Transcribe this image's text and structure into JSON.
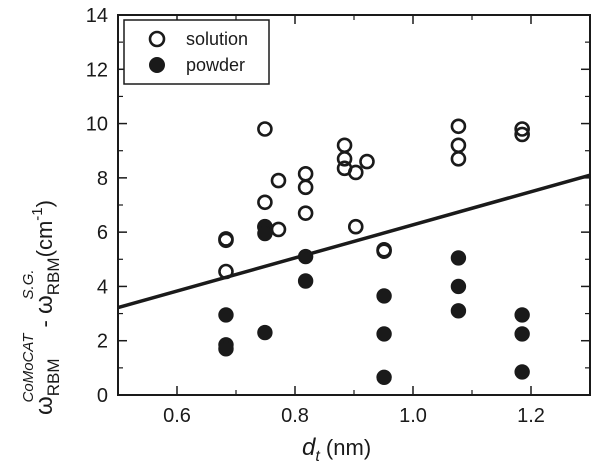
{
  "chart_data": {
    "type": "scatter",
    "xlim": [
      0.5,
      1.3
    ],
    "ylim": [
      0,
      14
    ],
    "x_ticks": [
      "0.6",
      "0.8",
      "1.0",
      "1.2"
    ],
    "y_ticks": [
      "0",
      "2",
      "4",
      "6",
      "8",
      "10",
      "12",
      "14"
    ],
    "xlabel": {
      "main": "d",
      "sub": "t",
      "unit": " (nm)"
    },
    "ylabel": {
      "omega1": "ω",
      "sub1": "RBM",
      "sup1": "CoMoCAT",
      "minus": " - ",
      "omega2": "ω",
      "sub2": "RBM",
      "sup2": "S.G.",
      "unit": " (cm",
      "unit_sup": "-1",
      "unit_close": ")"
    },
    "legend": {
      "placement": "top-left",
      "entries": [
        {
          "label": "solution",
          "marker": "open-circle"
        },
        {
          "label": "powder",
          "marker": "filled-circle"
        }
      ]
    },
    "series": [
      {
        "name": "solution",
        "marker": "open-circle",
        "points": [
          [
            0.683,
            4.55
          ],
          [
            0.683,
            5.7
          ],
          [
            0.683,
            5.75
          ],
          [
            0.749,
            9.8
          ],
          [
            0.749,
            7.1
          ],
          [
            0.749,
            6.2
          ],
          [
            0.772,
            7.9
          ],
          [
            0.772,
            6.1
          ],
          [
            0.818,
            8.15
          ],
          [
            0.818,
            7.65
          ],
          [
            0.818,
            6.7
          ],
          [
            0.884,
            9.2
          ],
          [
            0.884,
            8.7
          ],
          [
            0.884,
            8.35
          ],
          [
            0.903,
            8.2
          ],
          [
            0.903,
            6.2
          ],
          [
            0.922,
            8.6
          ],
          [
            0.951,
            5.35
          ],
          [
            0.951,
            5.3
          ],
          [
            1.077,
            9.9
          ],
          [
            1.077,
            9.2
          ],
          [
            1.077,
            8.7
          ],
          [
            1.185,
            9.8
          ],
          [
            1.185,
            9.6
          ]
        ]
      },
      {
        "name": "powder",
        "marker": "filled-circle",
        "points": [
          [
            0.683,
            2.95
          ],
          [
            0.683,
            1.85
          ],
          [
            0.683,
            1.7
          ],
          [
            0.749,
            6.2
          ],
          [
            0.749,
            5.95
          ],
          [
            0.749,
            2.3
          ],
          [
            0.818,
            5.1
          ],
          [
            0.818,
            4.2
          ],
          [
            0.951,
            3.65
          ],
          [
            0.951,
            2.25
          ],
          [
            0.951,
            0.65
          ],
          [
            1.077,
            5.05
          ],
          [
            1.077,
            4.0
          ],
          [
            1.077,
            3.1
          ],
          [
            1.185,
            2.95
          ],
          [
            1.185,
            2.25
          ],
          [
            1.185,
            0.85
          ]
        ]
      }
    ],
    "fit_line": {
      "x": [
        0.5,
        1.3
      ],
      "y": [
        3.22,
        8.1
      ]
    }
  }
}
